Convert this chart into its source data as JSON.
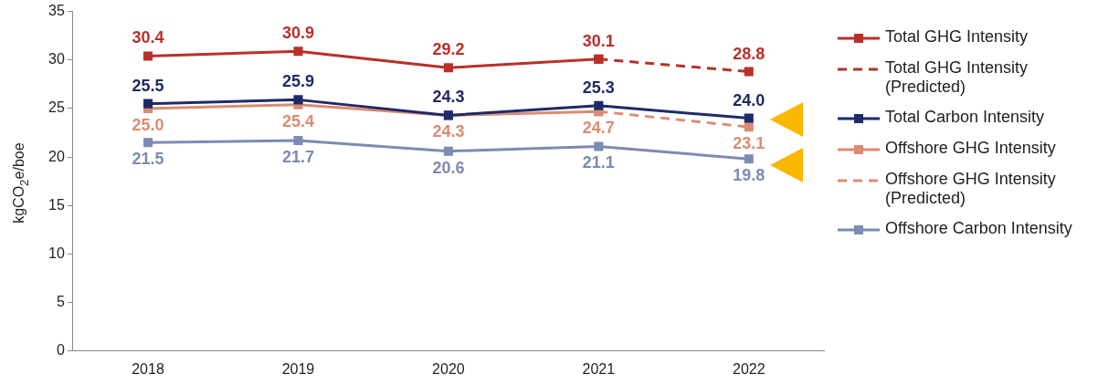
{
  "chart_data": {
    "type": "line",
    "ylabel": "kgCO$_{2}$e/boe",
    "categories": [
      "2018",
      "2019",
      "2020",
      "2021",
      "2022"
    ],
    "ylim": [
      0,
      35
    ],
    "yticks": [
      0,
      5,
      10,
      15,
      20,
      25,
      30,
      35
    ],
    "grid": false,
    "legend": "right",
    "marker": "square",
    "line_style": "solid",
    "series": [
      {
        "name": "Total GHG Intensity",
        "color": "#b8302a",
        "values": [
          30.4,
          30.9,
          29.2,
          30.1,
          null
        ],
        "value_labels": [
          "30.4",
          "30.9",
          "29.2",
          "30.1",
          null
        ]
      },
      {
        "name": "Total GHG Intensity (Predicted)",
        "color": "#b8302a",
        "line_style": "dashed",
        "values": [
          null,
          null,
          null,
          30.1,
          28.8
        ],
        "value_labels": [
          null,
          null,
          null,
          null,
          "28.8"
        ]
      },
      {
        "name": "Total Carbon Intensity",
        "color": "#1f2a68",
        "values": [
          25.5,
          25.9,
          24.3,
          25.3,
          24.0
        ],
        "value_labels": [
          "25.5",
          "25.9",
          "24.3",
          "25.3",
          "24.0"
        ]
      },
      {
        "name": "Offshore GHG Intensity",
        "color": "#dc8c72",
        "values": [
          25.0,
          25.4,
          24.3,
          24.7,
          null
        ],
        "value_labels": [
          "25.0",
          "25.4",
          "24.3",
          "24.7",
          null
        ]
      },
      {
        "name": "Offshore GHG Intensity (Predicted)",
        "color": "#dc8c72",
        "line_style": "dashed",
        "values": [
          null,
          null,
          null,
          24.7,
          23.1
        ],
        "value_labels": [
          null,
          null,
          null,
          null,
          "23.1"
        ]
      },
      {
        "name": "Offshore Carbon Intensity",
        "color": "#7d8bb3",
        "values": [
          21.5,
          21.7,
          20.6,
          21.1,
          19.8
        ],
        "value_labels": [
          "21.5",
          "21.7",
          "20.6",
          "21.1",
          "19.8"
        ]
      }
    ]
  }
}
